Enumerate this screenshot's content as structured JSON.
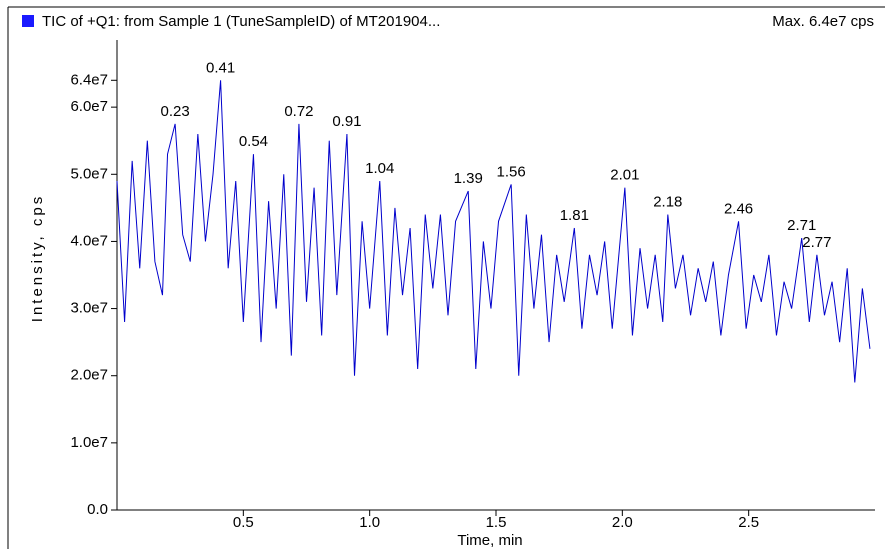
{
  "chart_data": {
    "type": "line",
    "title": "TIC of +Q1: from Sample 1 (TuneSampleID) of MT201904...",
    "subtitle": "Max. 6.4e7 cps",
    "x_label": "Time, min",
    "y_label": "Intensity, cps",
    "x": [
      0.0,
      0.03,
      0.06,
      0.09,
      0.12,
      0.15,
      0.18,
      0.2,
      0.23,
      0.26,
      0.29,
      0.32,
      0.35,
      0.38,
      0.41,
      0.44,
      0.47,
      0.5,
      0.54,
      0.57,
      0.6,
      0.63,
      0.66,
      0.69,
      0.72,
      0.75,
      0.78,
      0.81,
      0.84,
      0.87,
      0.91,
      0.94,
      0.97,
      1.0,
      1.04,
      1.07,
      1.1,
      1.13,
      1.16,
      1.19,
      1.22,
      1.25,
      1.28,
      1.31,
      1.34,
      1.39,
      1.42,
      1.45,
      1.48,
      1.51,
      1.56,
      1.59,
      1.62,
      1.65,
      1.68,
      1.71,
      1.74,
      1.77,
      1.81,
      1.84,
      1.87,
      1.9,
      1.93,
      1.96,
      2.01,
      2.04,
      2.07,
      2.1,
      2.13,
      2.16,
      2.18,
      2.21,
      2.24,
      2.27,
      2.3,
      2.33,
      2.36,
      2.39,
      2.42,
      2.46,
      2.49,
      2.52,
      2.55,
      2.58,
      2.61,
      2.64,
      2.67,
      2.71,
      2.74,
      2.77,
      2.8,
      2.83,
      2.86,
      2.89,
      2.92,
      2.95,
      2.98
    ],
    "series": [
      {
        "color": "#0000cc",
        "values": [
          49000000.0,
          28000000.0,
          52000000.0,
          36000000.0,
          55000000.0,
          37000000.0,
          32000000.0,
          53000000.0,
          57500000.0,
          41000000.0,
          37000000.0,
          56000000.0,
          40000000.0,
          50000000.0,
          64000000.0,
          36000000.0,
          49000000.0,
          28000000.0,
          53000000.0,
          25000000.0,
          46000000.0,
          30000000.0,
          50000000.0,
          23000000.0,
          57500000.0,
          31000000.0,
          48000000.0,
          26000000.0,
          55000000.0,
          32000000.0,
          56000000.0,
          20000000.0,
          43000000.0,
          30000000.0,
          49000000.0,
          26000000.0,
          45000000.0,
          32000000.0,
          42000000.0,
          21000000.0,
          44000000.0,
          33000000.0,
          44000000.0,
          29000000.0,
          43000000.0,
          47500000.0,
          21000000.0,
          40000000.0,
          30000000.0,
          43000000.0,
          48500000.0,
          20000000.0,
          44000000.0,
          30000000.0,
          41000000.0,
          25000000.0,
          38000000.0,
          31000000.0,
          42000000.0,
          27000000.0,
          38000000.0,
          32000000.0,
          40000000.0,
          27000000.0,
          48000000.0,
          26000000.0,
          39000000.0,
          30000000.0,
          38000000.0,
          28000000.0,
          44000000.0,
          33000000.0,
          38000000.0,
          29000000.0,
          36000000.0,
          31000000.0,
          37000000.0,
          26000000.0,
          35000000.0,
          43000000.0,
          27000000.0,
          35000000.0,
          31000000.0,
          38000000.0,
          26000000.0,
          34000000.0,
          30000000.0,
          40500000.0,
          28000000.0,
          38000000.0,
          29000000.0,
          34000000.0,
          25000000.0,
          36000000.0,
          19000000.0,
          33000000.0,
          24000000.0
        ]
      }
    ],
    "annotations": [
      {
        "x": 0.23,
        "y": 57500000.0
      },
      {
        "x": 0.41,
        "y": 64000000.0
      },
      {
        "x": 0.54,
        "y": 53000000.0
      },
      {
        "x": 0.72,
        "y": 57500000.0
      },
      {
        "x": 0.91,
        "y": 56000000.0
      },
      {
        "x": 1.04,
        "y": 49000000.0
      },
      {
        "x": 1.39,
        "y": 47500000.0
      },
      {
        "x": 1.56,
        "y": 48500000.0
      },
      {
        "x": 1.81,
        "y": 42000000.0
      },
      {
        "x": 2.01,
        "y": 48000000.0
      },
      {
        "x": 2.18,
        "y": 44000000.0
      },
      {
        "x": 2.46,
        "y": 43000000.0
      },
      {
        "x": 2.71,
        "y": 40500000.0
      },
      {
        "x": 2.77,
        "y": 38000000.0
      }
    ],
    "xlim": [
      0,
      3.0
    ],
    "ylim": [
      0,
      70000000.0
    ],
    "xticks": [
      0.5,
      {
        "value": 1.0,
        "label": "1.0"
      },
      1.5,
      {
        "value": 2.0,
        "label": "2.0"
      },
      2.5
    ],
    "yticks": [
      {
        "value": 0,
        "label": "0.0"
      },
      {
        "value": 10000000.0,
        "label": "1.0e7"
      },
      {
        "value": 20000000.0,
        "label": "2.0e7"
      },
      {
        "value": 30000000.0,
        "label": "3.0e7"
      },
      {
        "value": 40000000.0,
        "label": "4.0e7"
      },
      {
        "value": 50000000.0,
        "label": "5.0e7"
      },
      {
        "value": 60000000.0,
        "label": "6.0e7"
      },
      {
        "value": 64000000.0,
        "label": "6.4e7"
      }
    ],
    "legend_color": "#1a1aff"
  }
}
